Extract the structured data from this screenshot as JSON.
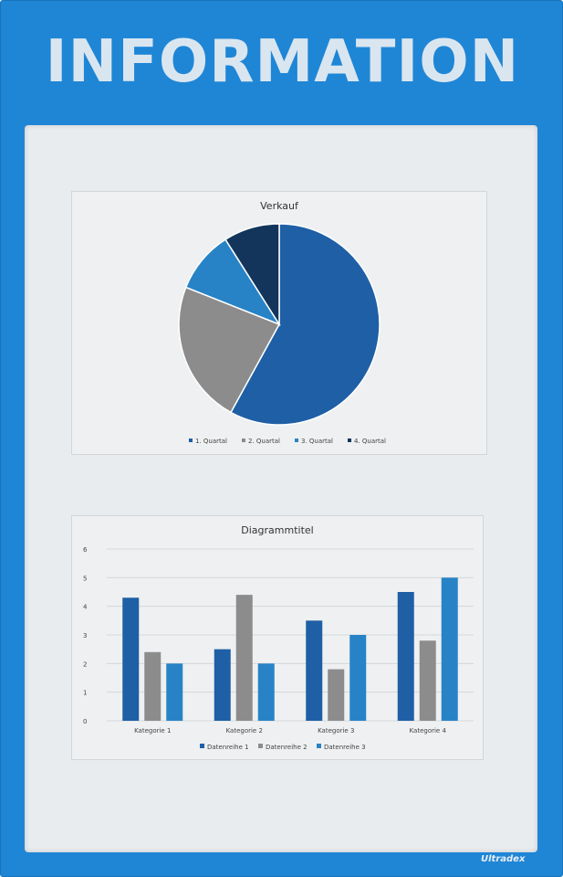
{
  "header": {
    "title": "INFORMATION"
  },
  "brand": "Ultradex",
  "chart_data": [
    {
      "type": "pie",
      "title": "Verkauf",
      "categories": [
        "1. Quartal",
        "2. Quartal",
        "3. Quartal",
        "4. Quartal"
      ],
      "values": [
        58,
        23,
        10,
        9
      ],
      "colors": [
        "#1e5fa6",
        "#8c8c8c",
        "#2783c6",
        "#13355c"
      ],
      "legend": "bottom"
    },
    {
      "type": "bar",
      "title": "Diagrammtitel",
      "categories": [
        "Kategorie 1",
        "Kategorie 2",
        "Kategorie 3",
        "Kategorie 4"
      ],
      "series": [
        {
          "name": "Datenreihe 1",
          "values": [
            4.3,
            2.5,
            3.5,
            4.5
          ],
          "color": "#1e5fa6"
        },
        {
          "name": "Datenreihe 2",
          "values": [
            2.4,
            4.4,
            1.8,
            2.8
          ],
          "color": "#8c8c8c"
        },
        {
          "name": "Datenreihe 3",
          "values": [
            2,
            2,
            3,
            5
          ],
          "color": "#2783c6"
        }
      ],
      "yticks": [
        "0",
        "1",
        "2",
        "3",
        "4",
        "5",
        "6"
      ],
      "ylim": [
        0,
        6
      ],
      "grid": true,
      "legend": "bottom"
    }
  ]
}
